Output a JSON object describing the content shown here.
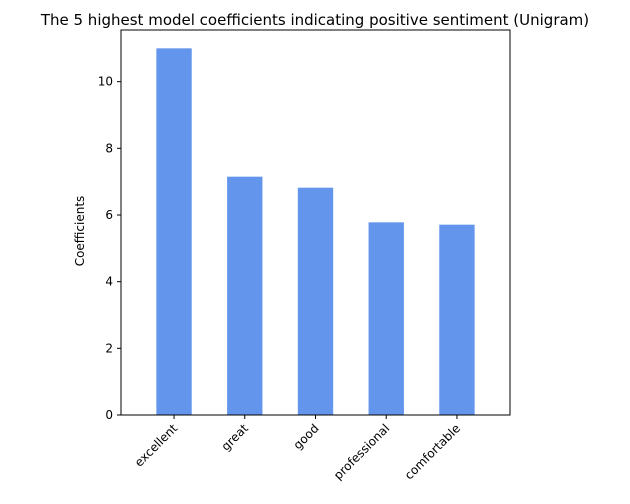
{
  "chart_data": {
    "type": "bar",
    "title": "The 5 highest model coefficients indicating positive sentiment (Unigram)",
    "xlabel": "",
    "ylabel": "Coefficients",
    "categories": [
      "excellent",
      "great",
      "good",
      "professional",
      "comfortable"
    ],
    "values": [
      11.0,
      7.15,
      6.82,
      5.78,
      5.71
    ],
    "ylim": [
      0,
      11.55
    ],
    "yticks": [
      0,
      2,
      4,
      6,
      8,
      10
    ],
    "ytick_labels": [
      "0",
      "2",
      "4",
      "6",
      "8",
      "10"
    ],
    "bar_color": "#6495ED",
    "grid": false,
    "legend": "none"
  }
}
